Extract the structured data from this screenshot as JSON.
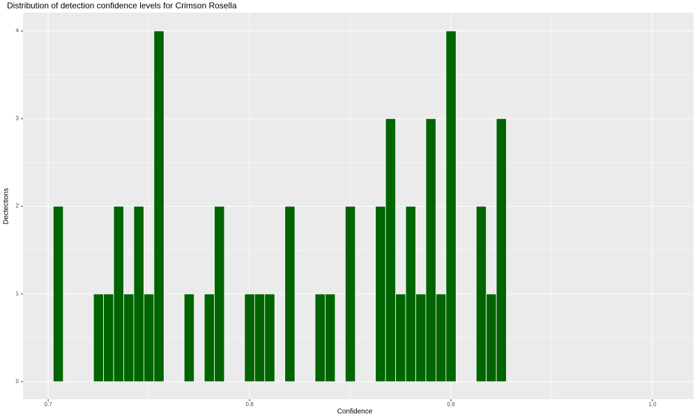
{
  "chart_data": {
    "type": "histogram",
    "title": "Distribution of detection confidence levels for Crimson Rosella",
    "x_label": "Confidence",
    "y_label": "Dectections",
    "bins": [
      0.7025,
      0.7075,
      0.7125,
      0.7175,
      0.7225,
      0.7275,
      0.7325,
      0.7375,
      0.7425,
      0.7475,
      0.7525,
      0.7575,
      0.7625,
      0.7675,
      0.7725,
      0.7775,
      0.7825,
      0.7875,
      0.7925,
      0.7975,
      0.8025,
      0.8075,
      0.8125,
      0.8175,
      0.8225,
      0.8275,
      0.8325,
      0.8375,
      0.8425,
      0.8475,
      0.8525,
      0.8575,
      0.8625,
      0.8675,
      0.8725,
      0.8775,
      0.8825,
      0.8875,
      0.8925,
      0.8975,
      0.9025,
      0.9075,
      0.9125,
      0.9175,
      0.9225,
      0.9275
    ],
    "values": [
      2,
      0,
      0,
      0,
      1,
      1,
      2,
      1,
      2,
      1,
      4,
      0,
      0,
      1,
      0,
      1,
      2,
      0,
      0,
      1,
      1,
      1,
      0,
      2,
      0,
      0,
      1,
      1,
      0,
      2,
      0,
      0,
      2,
      3,
      1,
      2,
      1,
      3,
      1,
      4,
      0,
      0,
      2,
      1,
      3
    ],
    "color": "#006400",
    "xlim": [
      0.6875,
      1.0204
    ],
    "xticks": [
      0.7,
      0.8,
      0.9,
      {
        "value": 1,
        "label": "1.0"
      }
    ],
    "ylim": [
      -0.2,
      4.21
    ],
    "yticks": [
      0,
      1,
      2,
      3,
      4
    ],
    "grid": true
  }
}
